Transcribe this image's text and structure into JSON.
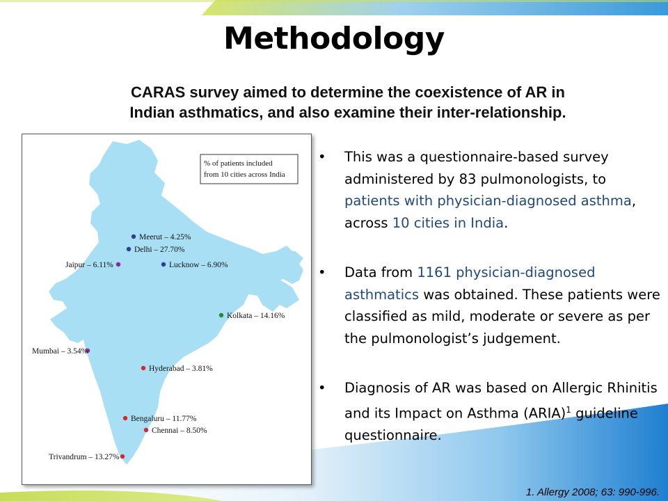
{
  "title": "Methodology",
  "subtitle_line1": "CARAS survey aimed to determine the coexistence of AR in",
  "subtitle_line2": "Indian asthmatics, and also examine their inter-relationship.",
  "map": {
    "legend_line1": "% of patients included",
    "legend_line2": "from 10 cities across India",
    "cities": [
      {
        "label": "Meerut – 4.25%",
        "dot_color": "#2d3e9a"
      },
      {
        "label": "Delhi – 27.70%",
        "dot_color": "#2d3e9a"
      },
      {
        "label": "Jaipur – 6.11%",
        "dot_color": "#8a2a9a"
      },
      {
        "label": "Lucknow – 6.90%",
        "dot_color": "#2d3e9a"
      },
      {
        "label": "Kolkata – 14.16%",
        "dot_color": "#1e8a3a"
      },
      {
        "label": "Mumbai – 3.54%",
        "dot_color": "#8a2a9a"
      },
      {
        "label": "Hyderabad – 3.81%",
        "dot_color": "#d6282b"
      },
      {
        "label": "Bengaluru – 11.77%",
        "dot_color": "#d6282b"
      },
      {
        "label": "Chennai – 8.50%",
        "dot_color": "#d6282b"
      },
      {
        "label": "Trivandrum – 13.27%",
        "dot_color": "#d6282b"
      }
    ]
  },
  "bullets": {
    "b1_p1": "This was a questionnaire-based survey administered by 83 pulmonologists, to ",
    "b1_hl1": "patients with physician-diagnosed asthma",
    "b1_p2": ", across ",
    "b1_hl2": "10 cities in India",
    "b1_p3": ".",
    "b2_p1": "Data from ",
    "b2_hl1": "1161 physician-diagnosed asthmatics",
    "b2_p2": " was obtained. These patients were classified as mild, moderate or severe as per the pulmonologist’s judgement.",
    "b3_p1": "Diagnosis of AR was based on Allergic Rhinitis and its Impact on Asthma (ARIA)",
    "b3_sup": "1",
    "b3_p2": " guideline questionnaire.",
    "bullet_char": "•"
  },
  "reference": "1. Allergy 2008; 63: 990-996.",
  "colors": {
    "highlight": "#1f497d",
    "map_fill": "#a9dff4",
    "band_green": "#b8d432",
    "band_blue": "#2a8fd6"
  }
}
